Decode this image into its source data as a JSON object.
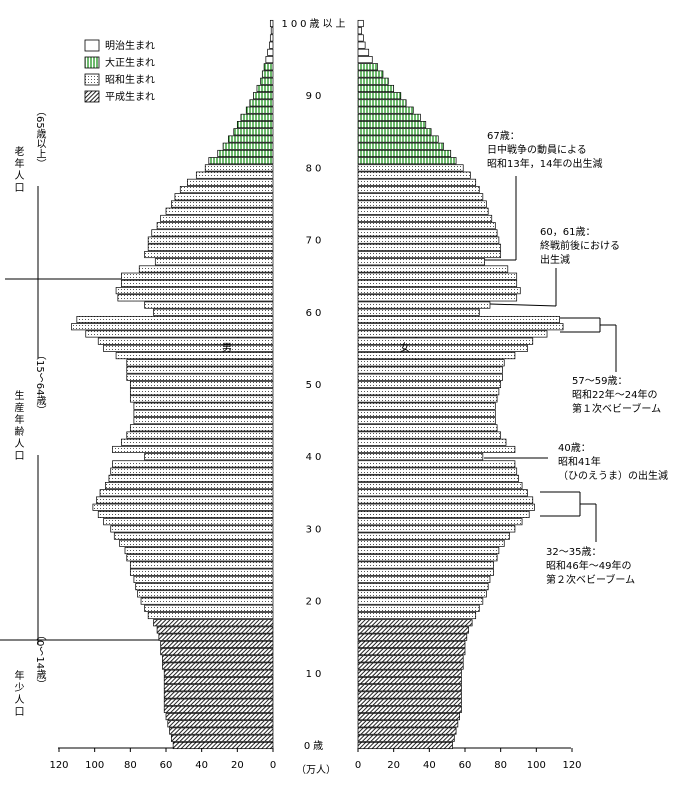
{
  "chart_data": {
    "type": "pyramid",
    "xlim": [
      0,
      120
    ],
    "xticks": [
      0,
      20,
      40,
      60,
      80,
      100,
      120
    ],
    "x_unit": "（万人）",
    "ylim": [
      -0.5,
      100.5
    ],
    "yticks": [
      {
        "value": 0,
        "label": "0歳"
      },
      10,
      20,
      30,
      40,
      50,
      60,
      70,
      80,
      90,
      {
        "value": 100,
        "label": "100歳以上"
      }
    ],
    "left_label": "男",
    "right_label": "女",
    "series": [
      {
        "name": "明治生まれ",
        "color": "#ffffff",
        "pattern": "none",
        "ages": [
          95,
          96,
          97,
          98,
          99,
          100
        ],
        "male": [
          4,
          3,
          2,
          1.5,
          1,
          1.5
        ],
        "female": [
          8,
          6,
          4,
          3,
          2,
          3
        ]
      },
      {
        "name": "大正生まれ",
        "color": "#2e9b2e",
        "pattern": "vertical",
        "ages": [
          81,
          82,
          83,
          84,
          85,
          86,
          87,
          88,
          89,
          90,
          91,
          92,
          93,
          94
        ],
        "male": [
          36,
          31,
          28,
          25,
          22,
          20,
          18,
          15,
          13,
          11,
          9,
          7,
          6,
          5
        ],
        "female": [
          55,
          52,
          48,
          45,
          41,
          38,
          35,
          31,
          27,
          24,
          20,
          17,
          14,
          11
        ]
      },
      {
        "name": "昭和生まれ",
        "color": "#555555",
        "pattern": "dots",
        "ages": [
          18,
          19,
          20,
          21,
          22,
          23,
          24,
          25,
          26,
          27,
          28,
          29,
          30,
          31,
          32,
          33,
          34,
          35,
          36,
          37,
          38,
          39,
          40,
          41,
          42,
          43,
          44,
          45,
          46,
          47,
          48,
          49,
          50,
          51,
          52,
          53,
          54,
          55,
          56,
          57,
          58,
          59,
          60,
          61,
          62,
          63,
          64,
          65,
          66,
          67,
          68,
          69,
          70,
          71,
          72,
          73,
          74,
          75,
          76,
          77,
          78,
          79,
          80
        ],
        "male": [
          70,
          72,
          74,
          76,
          77,
          78,
          80,
          80,
          82,
          83,
          86,
          89,
          91,
          95,
          98,
          101,
          99,
          97,
          94,
          92,
          91,
          90,
          72,
          90,
          85,
          82,
          80,
          78,
          78,
          78,
          80,
          80,
          80,
          82,
          82,
          82,
          88,
          95,
          98,
          105,
          113,
          110,
          67,
          72,
          87,
          88,
          85,
          85,
          75,
          66,
          72,
          70,
          70,
          68,
          65,
          63,
          60,
          57,
          55,
          52,
          48,
          43,
          38
        ],
        "female": [
          66,
          68,
          70,
          72,
          73,
          74,
          76,
          76,
          78,
          79,
          82,
          85,
          88,
          92,
          96,
          99,
          98,
          95,
          92,
          90,
          89,
          88,
          70,
          88,
          83,
          80,
          78,
          77,
          77,
          77,
          78,
          79,
          80,
          81,
          81,
          82,
          88,
          95,
          98,
          106,
          115,
          113,
          68,
          74,
          89,
          91,
          89,
          89,
          84,
          71,
          80,
          80,
          79,
          78,
          77,
          75,
          73,
          72,
          70,
          68,
          66,
          63,
          59
        ]
      },
      {
        "name": "平成生まれ",
        "color": "#222222",
        "pattern": "diagonal",
        "ages": [
          0,
          1,
          2,
          3,
          4,
          5,
          6,
          7,
          8,
          9,
          10,
          11,
          12,
          13,
          14,
          15,
          16,
          17
        ],
        "male": [
          56,
          57,
          58,
          59,
          60,
          61,
          61,
          61,
          61,
          61,
          61,
          62,
          62,
          63,
          63,
          64,
          65,
          67
        ],
        "female": [
          53,
          54,
          55,
          56,
          57,
          58,
          58,
          58,
          58,
          58,
          58,
          59,
          59,
          60,
          60,
          61,
          62,
          64
        ]
      }
    ],
    "groups": [
      {
        "name": "老年人口",
        "range": "（65歳以上）"
      },
      {
        "name": "生産年齢人口",
        "range": "（15～64歳）"
      },
      {
        "name": "年少人口",
        "range": "（0～14歳）"
      }
    ],
    "annotations": [
      [
        "67歳：",
        "日中戦争の動員による",
        "昭和13年，14年の出生減"
      ],
      [
        "60，61歳：",
        "終戦前後における",
        "出生減"
      ],
      [
        "57～59歳：",
        "昭和22年～24年の",
        "第１次ベビーブーム"
      ],
      [
        "40歳：",
        "昭和41年",
        "（ひのえうま）の出生減"
      ],
      [
        "32～35歳：",
        "昭和46年～49年の",
        "第２次ベビーブーム"
      ]
    ]
  }
}
